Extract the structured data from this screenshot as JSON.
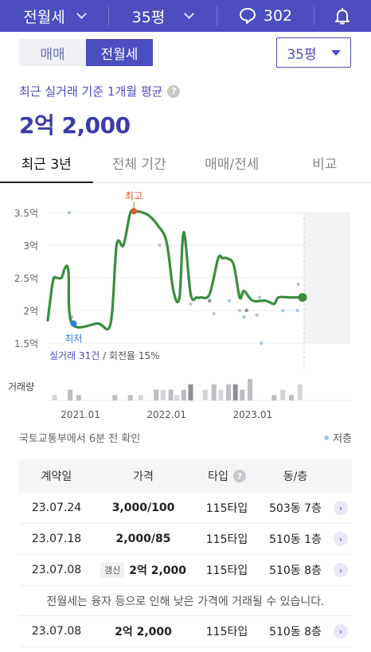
{
  "topbar": {
    "type_label": "전월세",
    "size_label": "35평",
    "talk_count": "302"
  },
  "deal_tabs": [
    {
      "label": "매매",
      "active": false
    },
    {
      "label": "전월세",
      "active": true
    }
  ],
  "size_select": "35평",
  "summary": {
    "label": "최근 실거래 기준 1개월 평균",
    "help": "?",
    "price": "2억 2,000"
  },
  "period_tabs": [
    {
      "label": "최근 3년",
      "active": true
    },
    {
      "label": "전체 기간",
      "active": false
    },
    {
      "label": "매매/전세",
      "active": false
    },
    {
      "label": "비교",
      "active": false
    }
  ],
  "chart_data": {
    "type": "line",
    "y_unit_labels": [
      "3.5억",
      "3억",
      "2.5억",
      "2억",
      "1.5억"
    ],
    "y_ticks": [
      3.5,
      3.0,
      2.5,
      2.0,
      1.5
    ],
    "ylim": [
      1.5,
      3.5
    ],
    "x_tick_labels": [
      "2021.01",
      "2022.01",
      "2023.01"
    ],
    "x_ticks": [
      2021.0,
      2022.0,
      2023.0
    ],
    "xlim": [
      2020.62,
      2023.95
    ],
    "series": [
      {
        "color": "#3a8d3f",
        "x": [
          2020.62,
          2020.68,
          2020.72,
          2020.78,
          2020.82,
          2020.86,
          2020.9,
          2021.2,
          2021.35,
          2021.42,
          2021.5,
          2021.58,
          2021.65,
          2021.72,
          2021.8,
          2021.9,
          2022.0,
          2022.08,
          2022.15,
          2022.2,
          2022.28,
          2022.35,
          2022.4,
          2022.5,
          2022.6,
          2022.65,
          2022.7,
          2022.78,
          2022.85,
          2022.9,
          2023.0,
          2023.15,
          2023.25,
          2023.3,
          2023.45,
          2023.58
        ],
        "y": [
          1.85,
          2.45,
          2.5,
          2.5,
          2.65,
          2.6,
          1.8,
          1.8,
          1.8,
          3.0,
          3.0,
          3.5,
          3.52,
          3.5,
          3.45,
          3.3,
          3.05,
          2.3,
          2.2,
          3.2,
          2.25,
          2.2,
          2.2,
          2.25,
          2.8,
          2.8,
          2.8,
          2.7,
          2.2,
          2.3,
          2.15,
          2.15,
          2.1,
          2.2,
          2.2,
          2.2
        ]
      }
    ],
    "scatter_points": [
      {
        "x": 2020.87,
        "y": 3.5,
        "kind": "low"
      },
      {
        "x": 2020.9,
        "y": 1.9,
        "kind": "low"
      },
      {
        "x": 2021.92,
        "y": 3.0,
        "kind": "low"
      },
      {
        "x": 2022.28,
        "y": 2.1,
        "kind": "mid"
      },
      {
        "x": 2022.5,
        "y": 2.15,
        "kind": "dark"
      },
      {
        "x": 2022.55,
        "y": 1.95,
        "kind": "mid"
      },
      {
        "x": 2022.73,
        "y": 2.15,
        "kind": "low"
      },
      {
        "x": 2022.85,
        "y": 2.0,
        "kind": "mid"
      },
      {
        "x": 2022.9,
        "y": 1.9,
        "kind": "low"
      },
      {
        "x": 2022.93,
        "y": 2.0,
        "kind": "dark"
      },
      {
        "x": 2023.05,
        "y": 1.93,
        "kind": "mid"
      },
      {
        "x": 2023.08,
        "y": 2.2,
        "kind": "mid"
      },
      {
        "x": 2023.1,
        "y": 1.5,
        "kind": "low"
      },
      {
        "x": 2023.35,
        "y": 2.0,
        "kind": "low"
      },
      {
        "x": 2023.52,
        "y": 2.0,
        "kind": "low"
      },
      {
        "x": 2023.53,
        "y": 2.4,
        "kind": "mid"
      }
    ],
    "annotations": {
      "high": {
        "label": "최고",
        "x": 2021.62,
        "y": 3.52,
        "color": "#e5572b"
      },
      "low": {
        "label": "최저",
        "x": 2020.92,
        "y": 1.8,
        "color": "#2f7fd7"
      },
      "current": {
        "x": 2023.58,
        "y": 2.2,
        "color": "#3a8d3f"
      }
    },
    "volume_label": "거래량",
    "volume": [
      {
        "x": 2020.7,
        "v": 1,
        "shade": "light"
      },
      {
        "x": 2020.88,
        "v": 2,
        "shade": "mid"
      },
      {
        "x": 2020.98,
        "v": 1,
        "shade": "mid"
      },
      {
        "x": 2021.4,
        "v": 1,
        "shade": "mid"
      },
      {
        "x": 2021.58,
        "v": 1,
        "shade": "mid"
      },
      {
        "x": 2021.7,
        "v": 1,
        "shade": "light"
      },
      {
        "x": 2021.88,
        "v": 2,
        "shade": "mid"
      },
      {
        "x": 2021.96,
        "v": 2,
        "shade": "light"
      },
      {
        "x": 2022.05,
        "v": 2,
        "shade": "mid"
      },
      {
        "x": 2022.12,
        "v": 1,
        "shade": "light"
      },
      {
        "x": 2022.2,
        "v": 2,
        "shade": "mid"
      },
      {
        "x": 2022.28,
        "v": 3,
        "shade": "dark"
      },
      {
        "x": 2022.45,
        "v": 2,
        "shade": "light"
      },
      {
        "x": 2022.55,
        "v": 3,
        "shade": "mid"
      },
      {
        "x": 2022.63,
        "v": 2,
        "shade": "light"
      },
      {
        "x": 2022.72,
        "v": 3,
        "shade": "mid"
      },
      {
        "x": 2022.8,
        "v": 3,
        "shade": "dark"
      },
      {
        "x": 2022.88,
        "v": 2,
        "shade": "mid"
      },
      {
        "x": 2022.97,
        "v": 4,
        "shade": "mid"
      },
      {
        "x": 2023.25,
        "v": 1,
        "shade": "mid"
      },
      {
        "x": 2023.35,
        "v": 2,
        "shade": "light"
      },
      {
        "x": 2023.45,
        "v": 1,
        "shade": "mid"
      },
      {
        "x": 2023.55,
        "v": 3,
        "shade": "light"
      }
    ],
    "volume_max": 4,
    "footer_text_a": "실거래 31건",
    "footer_text_b": " / 회전율 15%"
  },
  "info": {
    "source": "국토교통부에서 6분 전 확인",
    "legend_low": "저층"
  },
  "table": {
    "headers": [
      "계약일",
      "가격",
      "타입",
      "동/층"
    ],
    "rows": [
      {
        "date": "23.07.24",
        "price": "3,000/100",
        "type": "115타입",
        "dong": "503동 7층",
        "badge": ""
      },
      {
        "date": "23.07.18",
        "price": "2,000/85",
        "type": "115타입",
        "dong": "510동 1층",
        "badge": ""
      },
      {
        "date": "23.07.08",
        "price": "2억 2,000",
        "type": "115타입",
        "dong": "510동 8층",
        "badge": "갱신"
      }
    ],
    "notice": "전월세는 융자 등으로 인해 낮은 가격에 거래될 수 있습니다.",
    "extra_row": {
      "date": "23.07.08",
      "price": "2억 2,000",
      "type": "115타입",
      "dong": "510동 8층"
    }
  },
  "colors": {
    "brand": "#4c4dbf",
    "line": "#3a8d3f",
    "high": "#e5572b",
    "low": "#2f7fd7"
  }
}
